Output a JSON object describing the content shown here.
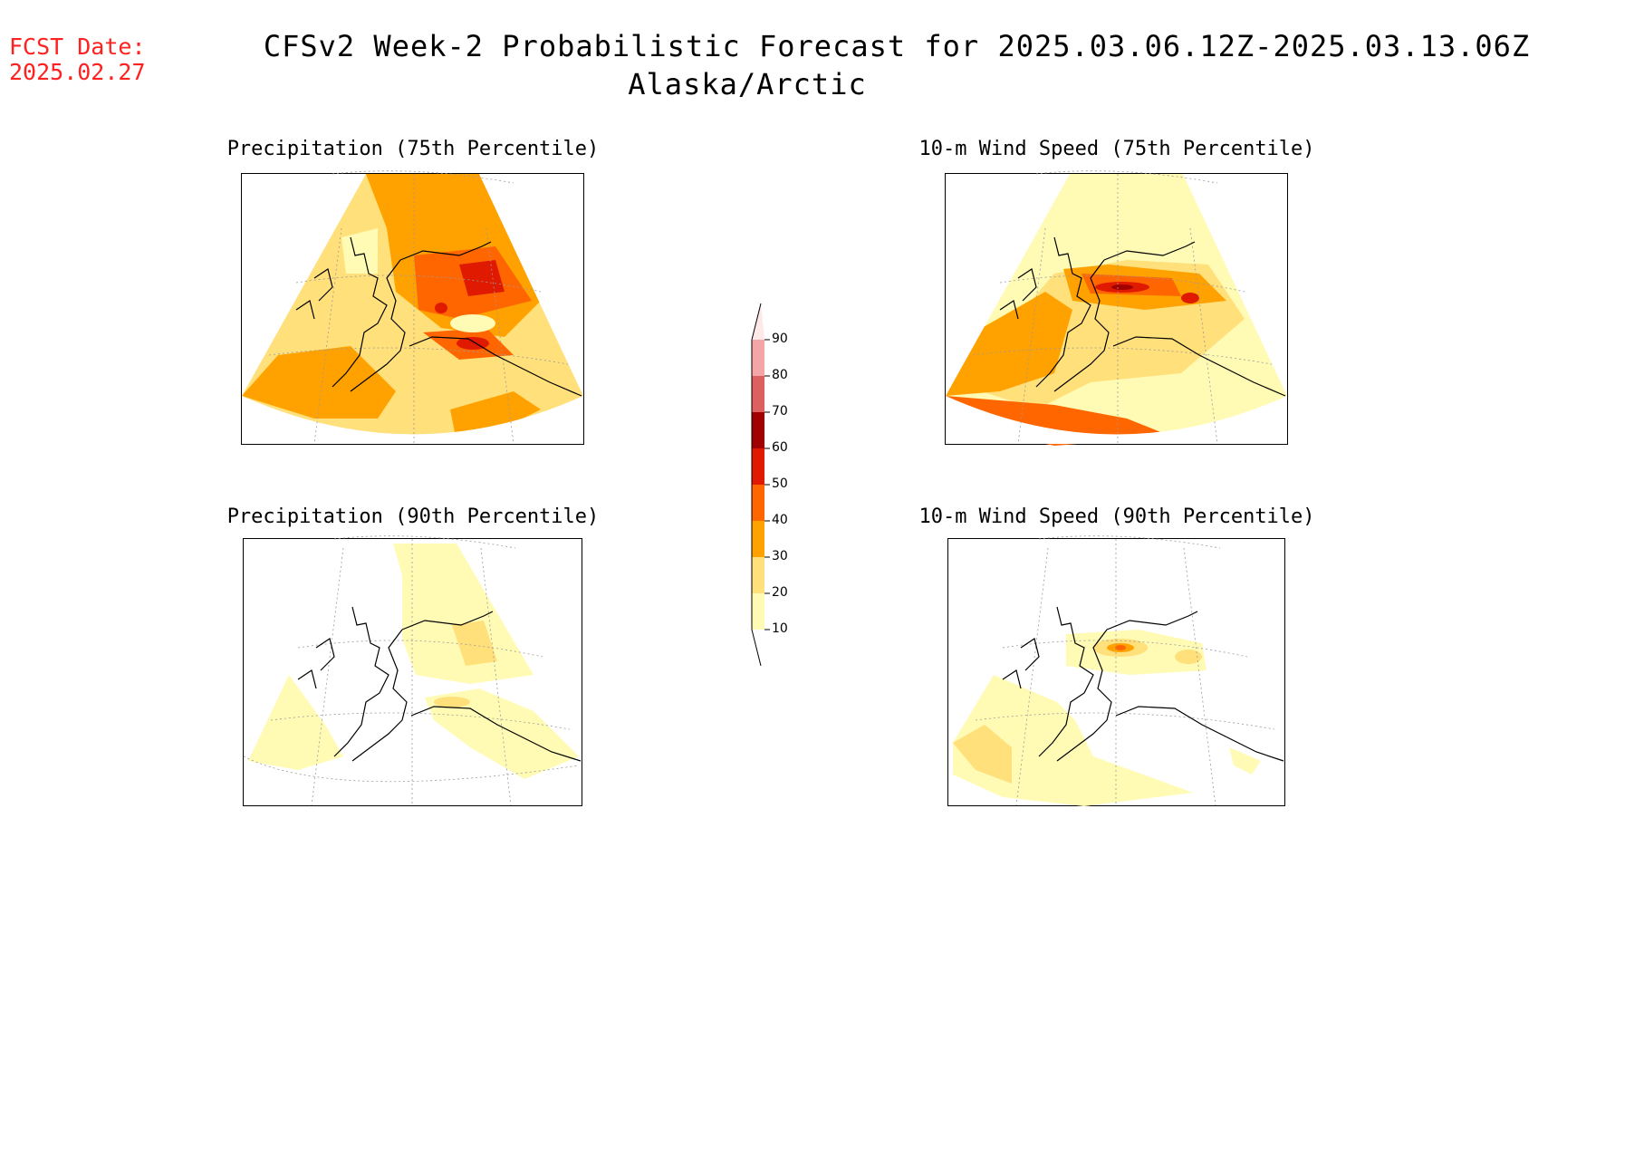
{
  "header": {
    "fcst_label": "FCST Date:",
    "fcst_date": "2025.02.27",
    "title": "CFSv2 Week-2 Probabilistic Forecast for 2025.03.06.12Z-2025.03.13.06Z",
    "subtitle": "Alaska/Arctic"
  },
  "panels": [
    {
      "title": "Precipitation (75th Percentile)"
    },
    {
      "title": "10-m Wind Speed (75th Percentile)"
    },
    {
      "title": "Precipitation (90th Percentile)"
    },
    {
      "title": "10-m Wind Speed (90th Percentile)"
    }
  ],
  "colorbar": {
    "labels": [
      "90",
      "80",
      "70",
      "60",
      "50",
      "40",
      "30",
      "20",
      "10"
    ],
    "colors": {
      "c10": "#fffbb4",
      "c20": "#ffe07a",
      "c30": "#ffa200",
      "c40": "#ff6600",
      "c50": "#e01a00",
      "c60": "#a00000",
      "c70": "#dd6060",
      "c80": "#f4a5a5",
      "c90": "#ffe8e8"
    }
  }
}
